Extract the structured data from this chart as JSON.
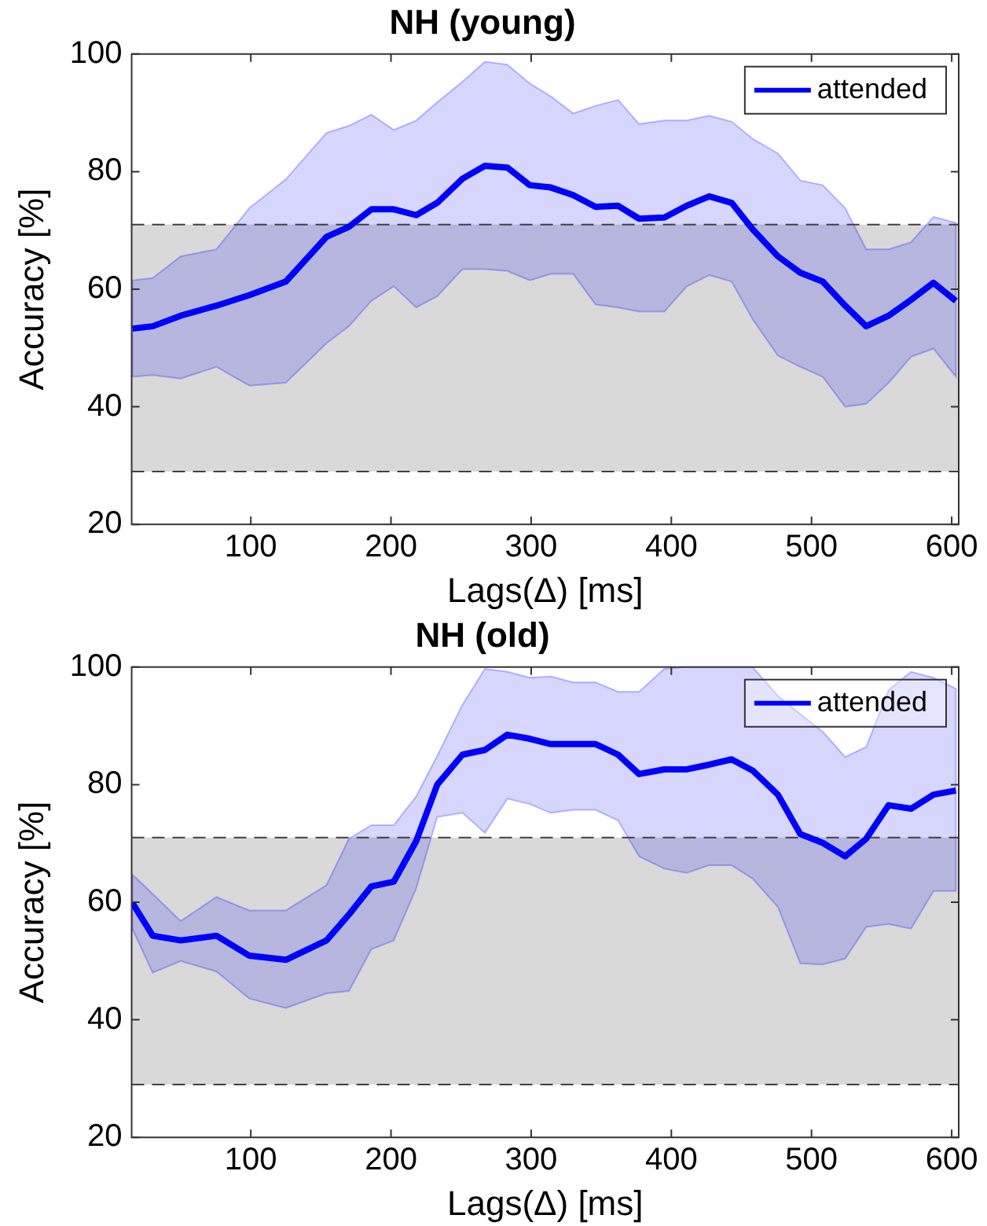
{
  "chart_data": [
    {
      "type": "line",
      "title": "NH (young)",
      "xlabel": "Lags(Δ) [ms]",
      "ylabel": "Accuracy [%]",
      "xlim": [
        15,
        605
      ],
      "xticks": [
        100,
        200,
        300,
        400,
        500,
        600
      ],
      "ylim": [
        20,
        100
      ],
      "yticks": [
        20,
        40,
        60,
        80,
        100
      ],
      "grid": false,
      "legend": "top right",
      "marker": "none",
      "x": [
        15.5,
        30,
        50,
        75.5,
        99,
        125,
        154,
        170,
        186,
        202,
        218,
        233,
        251,
        267,
        283,
        299,
        314,
        330,
        346,
        362,
        377,
        395,
        411,
        427,
        443,
        458,
        476,
        492,
        508,
        524,
        539,
        555,
        571,
        587,
        603
      ],
      "series": [
        {
          "name": "attended",
          "color": "#0000ff",
          "line_style": "solid",
          "values": [
            53.3,
            53.7,
            55.5,
            57.2,
            59,
            61.3,
            68.9,
            70.6,
            73.6,
            73.6,
            72.6,
            74.7,
            78.8,
            81,
            80.7,
            77.7,
            77.3,
            76,
            74,
            74.2,
            72,
            72.2,
            74.2,
            75.8,
            74.7,
            70.2,
            65.6,
            62.8,
            61.3,
            57.2,
            53.7,
            55.5,
            58.2,
            61.1,
            58
          ],
          "upper": [
            61.5,
            61.9,
            65.6,
            66.8,
            73.8,
            78.7,
            86.6,
            87.8,
            89.7,
            87.1,
            88.7,
            91.8,
            95.3,
            98.7,
            98.2,
            95,
            92.8,
            89.9,
            91.2,
            92.2,
            88.1,
            88.7,
            88.7,
            89.5,
            88.5,
            85.6,
            83.1,
            78.5,
            77.7,
            73.8,
            66.8,
            66.8,
            68,
            72.3,
            71.3
          ],
          "lower": [
            45.1,
            45.4,
            44.8,
            46.8,
            43.6,
            44.1,
            50.8,
            53.7,
            58,
            60.5,
            56.9,
            58.8,
            63.4,
            63.4,
            63.1,
            61.5,
            62.6,
            62.6,
            57.4,
            56.9,
            56.2,
            56.2,
            60.5,
            62.4,
            61.3,
            54.9,
            48.7,
            46.8,
            45.1,
            40,
            40.5,
            44.1,
            48.5,
            49.9,
            45.1
          ]
        }
      ],
      "bands": [
        {
          "axis": "y",
          "from": 29,
          "to": 71,
          "color": "#d9d9d9"
        }
      ],
      "ref_lines": [
        {
          "axis": "y",
          "value": 71,
          "line_style": "dashed",
          "color": "#404040"
        },
        {
          "axis": "y",
          "value": 29,
          "line_style": "dashed",
          "color": "#404040"
        }
      ]
    },
    {
      "type": "line",
      "title": "NH (old)",
      "xlabel": "Lags(Δ) [ms]",
      "ylabel": "Accuracy [%]",
      "xlim": [
        15,
        605
      ],
      "xticks": [
        100,
        200,
        300,
        400,
        500,
        600
      ],
      "ylim": [
        20,
        100
      ],
      "yticks": [
        20,
        40,
        60,
        80,
        100
      ],
      "grid": false,
      "legend": "top right",
      "marker": "none",
      "x": [
        15.5,
        30,
        50,
        75.5,
        99,
        125,
        154,
        170,
        186,
        202,
        218,
        233,
        251,
        267,
        283,
        299,
        314,
        330,
        346,
        362,
        377,
        395,
        411,
        427,
        443,
        458,
        476,
        492,
        508,
        524,
        539,
        555,
        571,
        587,
        603
      ],
      "series": [
        {
          "name": "attended",
          "color": "#0000ff",
          "line_style": "solid",
          "values": [
            59.9,
            54.3,
            53.5,
            54.3,
            50.9,
            50.2,
            53.5,
            57.9,
            62.7,
            63.5,
            70.4,
            80,
            85.1,
            85.9,
            88.5,
            87.8,
            86.9,
            86.9,
            86.9,
            85.1,
            81.8,
            82.6,
            82.6,
            83.4,
            84.3,
            82.4,
            78.3,
            71.6,
            70.1,
            67.8,
            70.8,
            76.5,
            75.9,
            78.3,
            79
          ],
          "upper": [
            64.7,
            61.4,
            56.8,
            60.9,
            58.6,
            58.6,
            62.9,
            70.8,
            73.1,
            73.1,
            78,
            84.9,
            93.6,
            99.7,
            99.2,
            98.2,
            98.4,
            97.4,
            97.4,
            95.8,
            95.8,
            99.7,
            100,
            100,
            100,
            100,
            95.1,
            92,
            89,
            84.7,
            86.4,
            96.1,
            99.2,
            98.2,
            96.3
          ],
          "lower": [
            55.5,
            48,
            50,
            48.2,
            43.6,
            42,
            44.5,
            44.9,
            52,
            53.5,
            62.4,
            74.5,
            75.2,
            71.8,
            77.6,
            76.7,
            75.2,
            75.7,
            75.7,
            73.9,
            67.8,
            65.7,
            65,
            66.3,
            66.3,
            64,
            59.2,
            49.6,
            49.4,
            50.4,
            55.8,
            56.3,
            55.5,
            61.9,
            61.9
          ]
        }
      ],
      "bands": [
        {
          "axis": "y",
          "from": 29,
          "to": 71,
          "color": "#d9d9d9"
        }
      ],
      "ref_lines": [
        {
          "axis": "y",
          "value": 71,
          "line_style": "dashed",
          "color": "#404040"
        },
        {
          "axis": "y",
          "value": 29,
          "line_style": "dashed",
          "color": "#404040"
        }
      ]
    }
  ]
}
